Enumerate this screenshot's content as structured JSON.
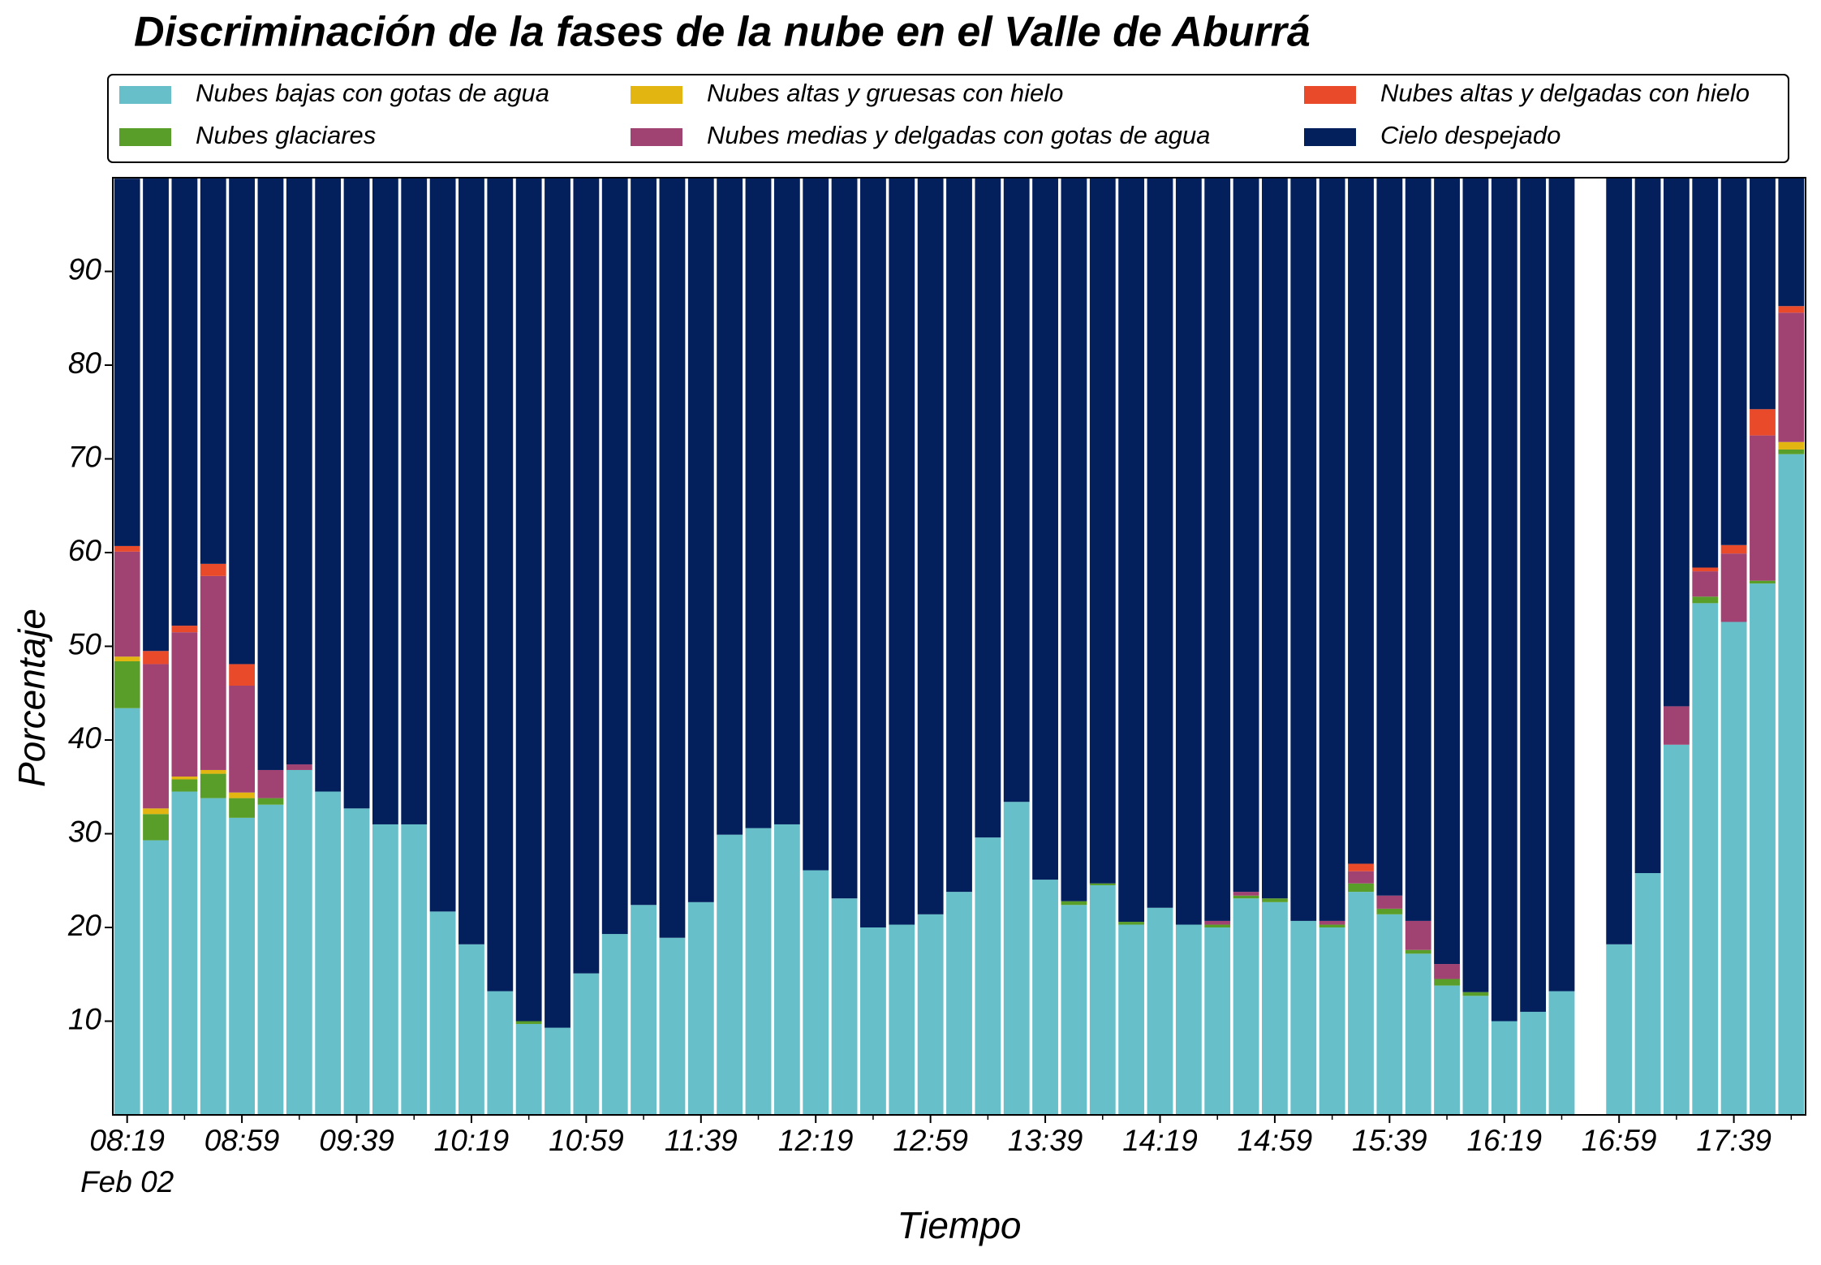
{
  "chart_data": {
    "type": "stacked_bar",
    "title": "Discriminación de la fases de la nube en el Valle de Aburrá",
    "xlabel": "Tiempo",
    "ylabel": "Porcentaje",
    "x_date_label": "Feb 02",
    "categories": [
      "08:19",
      null,
      null,
      null,
      "08:59",
      null,
      null,
      null,
      "09:39",
      null,
      null,
      null,
      "10:19",
      null,
      null,
      null,
      "10:59",
      null,
      null,
      null,
      "11:39",
      null,
      null,
      null,
      "12:19",
      null,
      null,
      null,
      "12:59",
      null,
      null,
      null,
      "13:39",
      null,
      null,
      null,
      "14:19",
      null,
      null,
      null,
      "14:59",
      null,
      null,
      null,
      "15:39",
      null,
      null,
      null,
      "16:19",
      null,
      null,
      null,
      "16:59",
      null,
      null,
      null,
      "17:39",
      null,
      null
    ],
    "ylim": [
      0,
      100
    ],
    "yticks": [
      10,
      20,
      30,
      40,
      50,
      60,
      70,
      80,
      90
    ],
    "legend": "top",
    "series": [
      {
        "name": "Nubes bajas con gotas de agua",
        "color": "#67bfca",
        "values": [
          43.4,
          29.3,
          34.5,
          33.8,
          31.7,
          33.1,
          36.8,
          34.5,
          32.7,
          31.0,
          31.0,
          21.7,
          18.2,
          13.2,
          9.7,
          9.3,
          15.1,
          19.3,
          22.4,
          18.9,
          22.7,
          29.9,
          30.6,
          31.0,
          26.1,
          23.1,
          20.0,
          20.3,
          21.4,
          23.8,
          29.6,
          33.4,
          25.1,
          22.4,
          24.5,
          20.3,
          22.1,
          20.3,
          20.0,
          23.1,
          22.7,
          20.7,
          20.0,
          23.8,
          21.4,
          17.2,
          13.8,
          12.7,
          10.0,
          11.0,
          13.2,
          null,
          18.2,
          25.8,
          39.5,
          54.6,
          52.6,
          56.7,
          70.5
        ]
      },
      {
        "name": "Nubes glaciares",
        "color": "#5a9e2a",
        "values": [
          5.0,
          2.8,
          1.3,
          2.6,
          2.1,
          0.7,
          0,
          0,
          0,
          0,
          0,
          0,
          0,
          0,
          0.3,
          0,
          0,
          0,
          0,
          0,
          0,
          0,
          0,
          0,
          0,
          0,
          0,
          0,
          0,
          0,
          0,
          0,
          0,
          0.4,
          0.2,
          0.3,
          0,
          0,
          0.3,
          0.3,
          0.4,
          0,
          0.3,
          0.9,
          0.6,
          0.4,
          0.7,
          0.4,
          0,
          0,
          0,
          null,
          0,
          0,
          0,
          0.7,
          0,
          0.3,
          0.5
        ]
      },
      {
        "name": "Nubes altas y gruesas con hielo",
        "color": "#e3b510",
        "values": [
          0.5,
          0.6,
          0.3,
          0.4,
          0.6,
          0,
          0,
          0,
          0,
          0,
          0,
          0,
          0,
          0,
          0,
          0,
          0,
          0,
          0,
          0,
          0,
          0,
          0,
          0,
          0,
          0,
          0,
          0,
          0,
          0,
          0,
          0,
          0,
          0,
          0,
          0,
          0,
          0,
          0,
          0,
          0,
          0,
          0,
          0,
          0,
          0,
          0,
          0,
          0,
          0,
          0,
          null,
          0,
          0,
          0,
          0,
          0,
          0,
          0.8
        ]
      },
      {
        "name": "Nubes medias y delgadas con gotas de agua",
        "color": "#a04373",
        "values": [
          11.2,
          15.4,
          15.4,
          20.7,
          11.4,
          3.0,
          0.6,
          0,
          0,
          0,
          0,
          0,
          0,
          0,
          0,
          0,
          0,
          0,
          0,
          0,
          0,
          0,
          0,
          0,
          0,
          0,
          0,
          0,
          0,
          0,
          0,
          0,
          0,
          0,
          0,
          0,
          0,
          0,
          0.4,
          0.4,
          0,
          0,
          0.4,
          1.3,
          1.4,
          3.1,
          1.6,
          0,
          0,
          0,
          0,
          null,
          0,
          0,
          4.1,
          2.7,
          7.3,
          15.5,
          13.8
        ]
      },
      {
        "name": "Nubes altas y delgadas con hielo",
        "color": "#e84a2a",
        "values": [
          0.6,
          1.4,
          0.7,
          1.3,
          2.3,
          0,
          0,
          0,
          0,
          0,
          0,
          0,
          0,
          0,
          0,
          0,
          0,
          0,
          0,
          0,
          0,
          0,
          0,
          0,
          0,
          0,
          0,
          0,
          0,
          0,
          0,
          0,
          0,
          0,
          0,
          0,
          0,
          0,
          0,
          0,
          0,
          0,
          0,
          0.8,
          0,
          0,
          0,
          0,
          0,
          0,
          0,
          null,
          0,
          0,
          0,
          0.4,
          0.9,
          2.8,
          0.7
        ]
      },
      {
        "name": "Cielo despejado",
        "color": "#031f5c",
        "values": [
          39.2,
          50.5,
          47.8,
          41.2,
          51.9,
          63.2,
          62.6,
          65.5,
          67.3,
          69.0,
          69.0,
          78.3,
          81.8,
          86.8,
          90.0,
          90.7,
          84.9,
          80.7,
          77.6,
          81.1,
          77.3,
          70.1,
          69.4,
          69.0,
          73.9,
          76.9,
          80.0,
          79.7,
          78.6,
          76.2,
          70.4,
          66.6,
          74.9,
          77.2,
          75.3,
          79.4,
          77.9,
          79.7,
          79.3,
          76.2,
          76.9,
          79.3,
          79.3,
          73.2,
          76.6,
          79.3,
          83.9,
          86.9,
          90.0,
          89.0,
          86.8,
          null,
          81.8,
          74.2,
          56.4,
          41.6,
          39.2,
          24.7,
          13.7
        ]
      }
    ]
  }
}
